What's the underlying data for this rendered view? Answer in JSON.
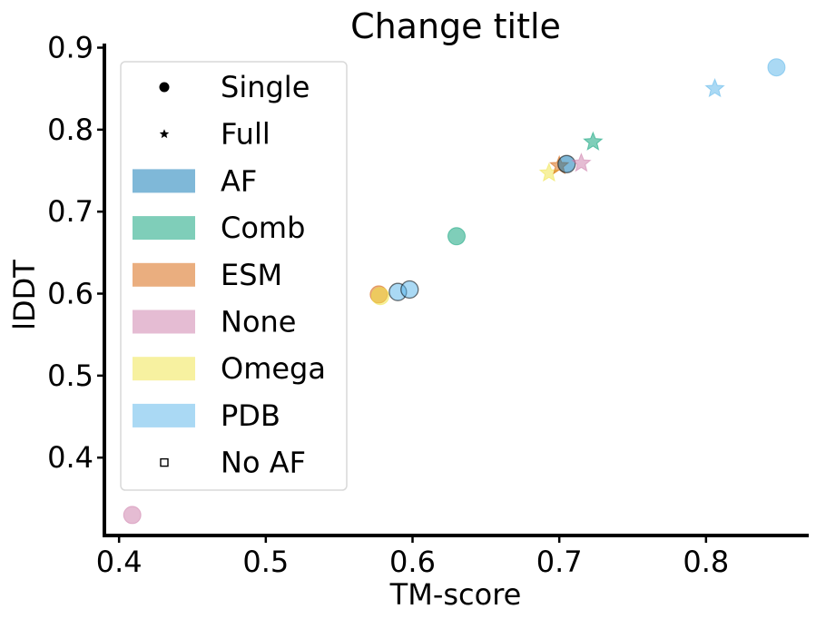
{
  "chart_data": {
    "type": "scatter",
    "title": "Change title",
    "xlabel": "TM-score",
    "ylabel": "lDDT",
    "xlim": [
      0.39,
      0.87
    ],
    "ylim": [
      0.305,
      0.905
    ],
    "x_ticks": [
      "0.4",
      "0.5",
      "0.6",
      "0.7",
      "0.8"
    ],
    "y_ticks": [
      "0.4",
      "0.5",
      "0.6",
      "0.7",
      "0.8",
      "0.9"
    ],
    "grid": false,
    "legend_placement": "upper-left",
    "colors": {
      "AF": "#0072B2",
      "Comb": "#009E73",
      "ESM": "#D55E00",
      "None": "#CC79A7",
      "Omega": "#F0E442",
      "PDB": "#56B4E9"
    },
    "legend": [
      {
        "label": "Single",
        "kind": "marker",
        "marker": "circle"
      },
      {
        "label": "Full",
        "kind": "marker",
        "marker": "star"
      },
      {
        "label": "AF",
        "kind": "patch",
        "color_key": "AF"
      },
      {
        "label": "Comb",
        "kind": "patch",
        "color_key": "Comb"
      },
      {
        "label": "ESM",
        "kind": "patch",
        "color_key": "ESM"
      },
      {
        "label": "None",
        "kind": "patch",
        "color_key": "None"
      },
      {
        "label": "Omega",
        "kind": "patch",
        "color_key": "Omega"
      },
      {
        "label": "PDB",
        "kind": "patch",
        "color_key": "PDB"
      },
      {
        "label": "No AF",
        "kind": "marker",
        "marker": "square"
      }
    ],
    "points": [
      {
        "group": "None",
        "mode": "Single",
        "x": 0.409,
        "y": 0.33,
        "outlined": false
      },
      {
        "group": "ESM",
        "mode": "Single",
        "x": 0.577,
        "y": 0.599,
        "outlined": false
      },
      {
        "group": "Omega",
        "mode": "Single",
        "x": 0.578,
        "y": 0.597,
        "outlined": false
      },
      {
        "group": "PDB",
        "mode": "Single",
        "x": 0.59,
        "y": 0.602,
        "outlined": true
      },
      {
        "group": "PDB",
        "mode": "Single",
        "x": 0.598,
        "y": 0.605,
        "outlined": true
      },
      {
        "group": "Comb",
        "mode": "Single",
        "x": 0.63,
        "y": 0.67,
        "outlined": false
      },
      {
        "group": "Omega",
        "mode": "Full",
        "x": 0.693,
        "y": 0.747,
        "outlined": false
      },
      {
        "group": "ESM",
        "mode": "Full",
        "x": 0.7,
        "y": 0.756,
        "outlined": false
      },
      {
        "group": "AF",
        "mode": "Single",
        "x": 0.705,
        "y": 0.758,
        "outlined": true
      },
      {
        "group": "None",
        "mode": "Full",
        "x": 0.715,
        "y": 0.759,
        "outlined": false
      },
      {
        "group": "Comb",
        "mode": "Full",
        "x": 0.723,
        "y": 0.785,
        "outlined": false
      },
      {
        "group": "PDB",
        "mode": "Full",
        "x": 0.806,
        "y": 0.85,
        "outlined": false
      },
      {
        "group": "PDB",
        "mode": "Single",
        "x": 0.848,
        "y": 0.876,
        "outlined": false
      }
    ]
  }
}
